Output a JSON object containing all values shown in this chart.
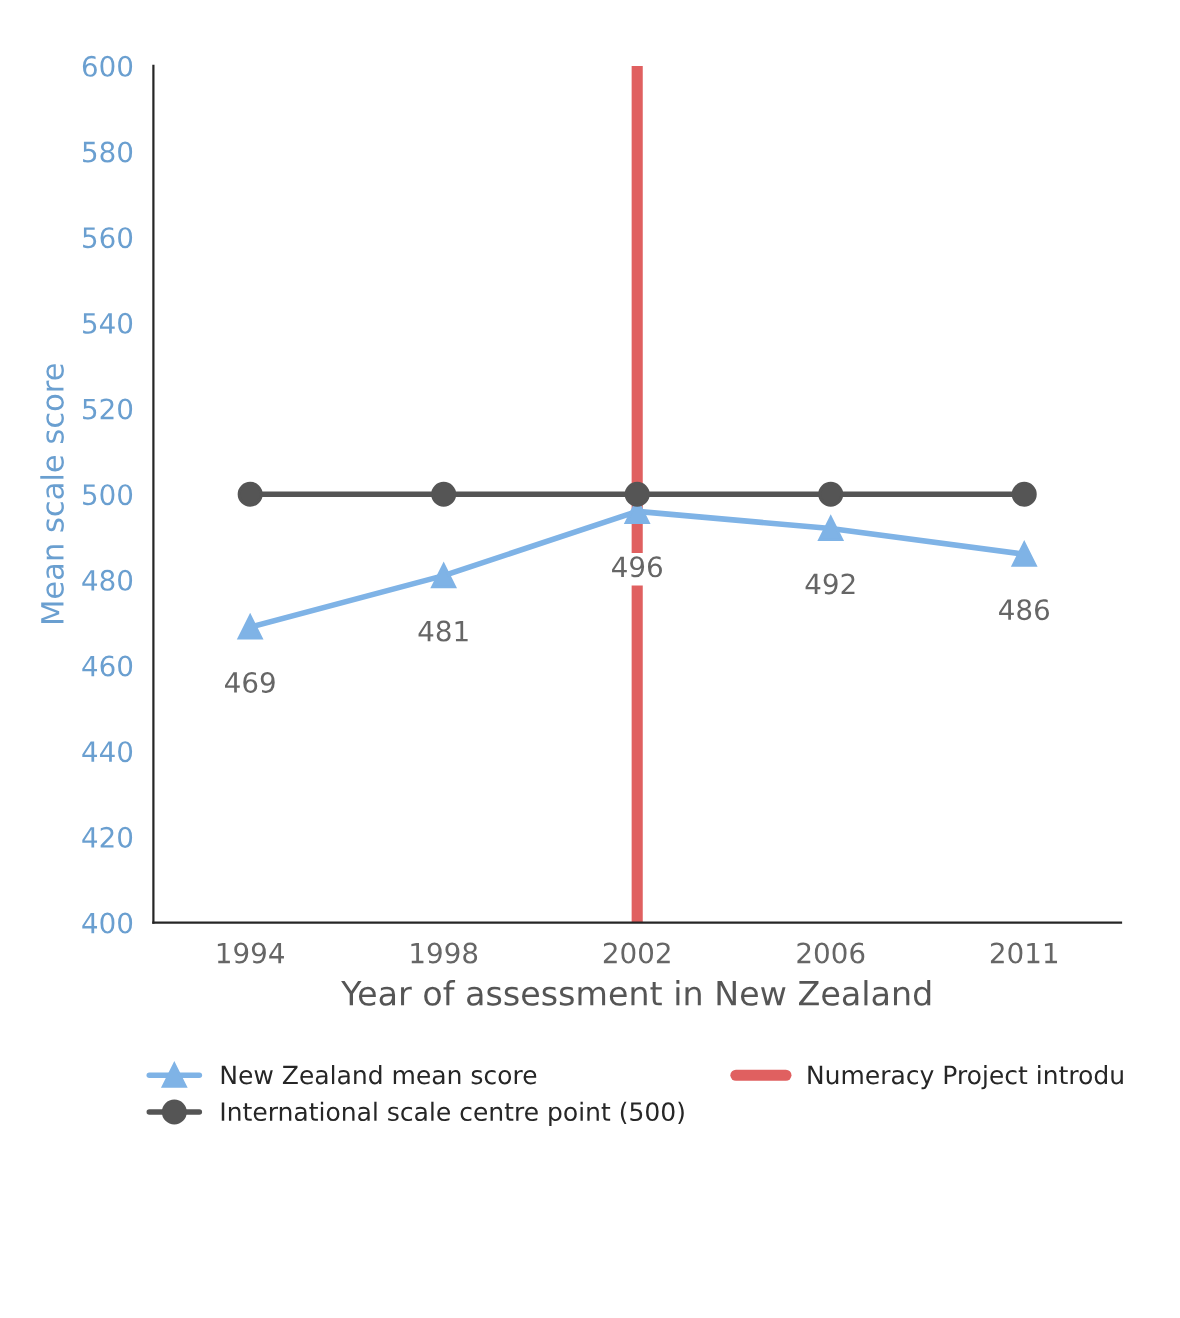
{
  "chart_data": {
    "type": "line",
    "xlabel": "Year of assessment in New Zealand",
    "ylabel": "Mean scale score",
    "categories": [
      "1994",
      "1998",
      "2002",
      "2006",
      "2011"
    ],
    "series": [
      {
        "name": "New Zealand mean score",
        "color": "#7fb3e6",
        "values": [
          469,
          481,
          496,
          492,
          486
        ],
        "marker": "triangle",
        "value_labels": [
          "469",
          "481",
          "496",
          "492",
          "486"
        ]
      },
      {
        "name": "International scale centre point (500)",
        "color": "#555555",
        "values": [
          500,
          500,
          500,
          500,
          500
        ],
        "marker": "circle"
      }
    ],
    "ref_lines": [
      {
        "axis": "x",
        "value": "2002",
        "label": "Numeracy Project introdu",
        "color": "#e06060"
      }
    ],
    "ylim": [
      400,
      600
    ],
    "yticks": [
      400,
      420,
      440,
      460,
      480,
      500,
      520,
      540,
      560,
      580,
      600
    ],
    "grid": false,
    "legend": "bottom",
    "line_style": "solid"
  }
}
